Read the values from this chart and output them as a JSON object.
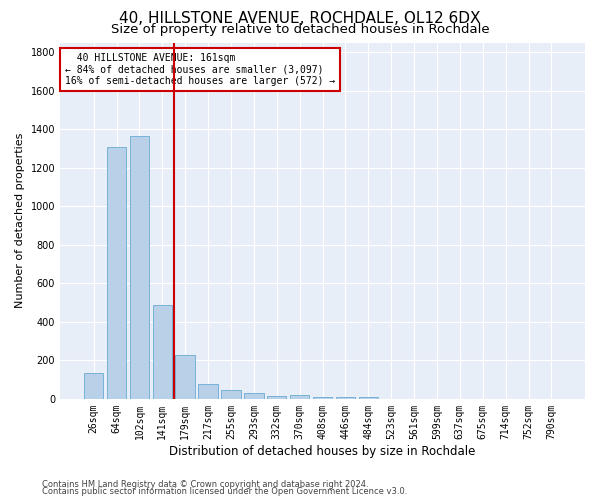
{
  "title": "40, HILLSTONE AVENUE, ROCHDALE, OL12 6DX",
  "subtitle": "Size of property relative to detached houses in Rochdale",
  "xlabel": "Distribution of detached houses by size in Rochdale",
  "ylabel": "Number of detached properties",
  "footer1": "Contains HM Land Registry data © Crown copyright and database right 2024.",
  "footer2": "Contains public sector information licensed under the Open Government Licence v3.0.",
  "bar_labels": [
    "26sqm",
    "64sqm",
    "102sqm",
    "141sqm",
    "179sqm",
    "217sqm",
    "255sqm",
    "293sqm",
    "332sqm",
    "370sqm",
    "408sqm",
    "446sqm",
    "484sqm",
    "523sqm",
    "561sqm",
    "599sqm",
    "637sqm",
    "675sqm",
    "714sqm",
    "752sqm",
    "790sqm"
  ],
  "bar_values": [
    135,
    1310,
    1365,
    487,
    225,
    75,
    45,
    30,
    15,
    20,
    10,
    10,
    10,
    0,
    0,
    0,
    0,
    0,
    0,
    0,
    0
  ],
  "bar_color": "#b8d0e8",
  "bar_edgecolor": "#6aaad4",
  "highlight_line_color": "#cc0000",
  "annotation_text": "  40 HILLSTONE AVENUE: 161sqm\n← 84% of detached houses are smaller (3,097)\n16% of semi-detached houses are larger (572) →",
  "annotation_box_color": "#cc0000",
  "bg_color": "#e8eef8",
  "ylim": [
    0,
    1850
  ],
  "yticks": [
    0,
    200,
    400,
    600,
    800,
    1000,
    1200,
    1400,
    1600,
    1800
  ],
  "grid_color": "#ffffff",
  "title_fontsize": 11,
  "subtitle_fontsize": 9.5,
  "xlabel_fontsize": 8.5,
  "ylabel_fontsize": 8,
  "tick_fontsize": 7,
  "footer_fontsize": 6
}
